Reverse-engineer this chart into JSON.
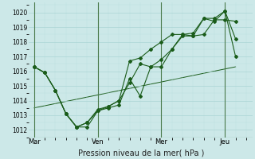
{
  "xlabel": "Pression niveau de la mer( hPa )",
  "bg_color": "#cce8e8",
  "grid_major_color": "#aad4d4",
  "grid_minor_color": "#bbdfdf",
  "line_color": "#1a5c1a",
  "ylim": [
    1011.5,
    1020.7
  ],
  "yticks": [
    1012,
    1013,
    1014,
    1015,
    1016,
    1017,
    1018,
    1019,
    1020
  ],
  "xtick_labels": [
    "Mar",
    "Ven",
    "Mer",
    "Jeu"
  ],
  "xtick_positions": [
    0,
    48,
    96,
    144
  ],
  "vline_positions": [
    0,
    48,
    96,
    144
  ],
  "xlim": [
    -4,
    165
  ],
  "series1_x": [
    0,
    8,
    16,
    24,
    32,
    40,
    48,
    56,
    64,
    72,
    80,
    88,
    96,
    104,
    112,
    120,
    128,
    136,
    144,
    152
  ],
  "series1_y": [
    1016.3,
    1015.9,
    1014.7,
    1013.1,
    1012.2,
    1012.2,
    1013.3,
    1013.5,
    1013.7,
    1015.5,
    1014.3,
    1016.3,
    1016.3,
    1017.5,
    1018.4,
    1018.4,
    1018.5,
    1019.5,
    1019.5,
    1019.4
  ],
  "series2_x": [
    0,
    8,
    16,
    24,
    32,
    40,
    48,
    56,
    64,
    72,
    80,
    88,
    96,
    104,
    112,
    120,
    128,
    136,
    144,
    152
  ],
  "series2_y": [
    1016.3,
    1015.9,
    1014.7,
    1013.1,
    1012.2,
    1012.5,
    1013.3,
    1013.6,
    1014.0,
    1015.2,
    1016.5,
    1016.3,
    1016.8,
    1017.5,
    1018.5,
    1018.4,
    1019.6,
    1019.6,
    1020.1,
    1018.2
  ],
  "series3_x": [
    0,
    8,
    16,
    24,
    32,
    40,
    48,
    56,
    64,
    72,
    80,
    88,
    96,
    104,
    112,
    120,
    128,
    136,
    144,
    152
  ],
  "series3_y": [
    1016.3,
    1015.9,
    1014.7,
    1013.1,
    1012.2,
    1012.5,
    1013.4,
    1013.6,
    1014.0,
    1016.7,
    1016.9,
    1017.5,
    1018.0,
    1018.5,
    1018.5,
    1018.6,
    1019.6,
    1019.4,
    1020.1,
    1017.0
  ],
  "series4_x": [
    0,
    152
  ],
  "series4_y": [
    1013.5,
    1016.3
  ]
}
